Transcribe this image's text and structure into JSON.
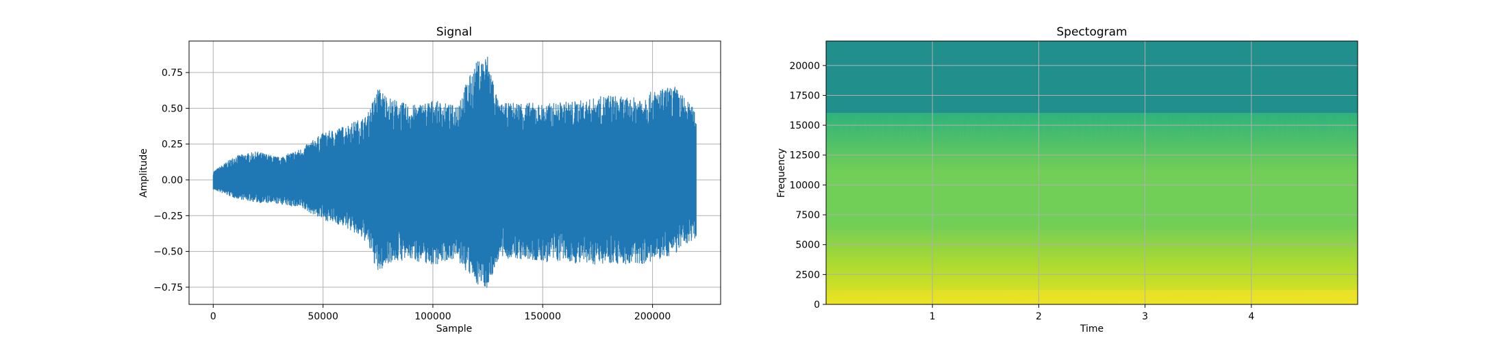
{
  "chart_data": [
    {
      "type": "line",
      "title": "Signal",
      "xlabel": "Sample",
      "ylabel": "Amplitude",
      "xlim": [
        -11000,
        231000
      ],
      "ylim": [
        -0.87,
        0.97
      ],
      "grid": true,
      "line_color": "#1f77b4",
      "xticks": [
        0,
        50000,
        100000,
        150000,
        200000
      ],
      "yticks": [
        -0.75,
        -0.5,
        -0.25,
        0.0,
        0.25,
        0.5,
        0.75
      ],
      "xtick_labels": [
        "0",
        "50000",
        "100000",
        "150000",
        "200000"
      ],
      "ytick_labels": [
        "−0.75",
        "−0.50",
        "−0.25",
        "0.00",
        "0.25",
        "0.50",
        "0.75"
      ],
      "envelope": {
        "x": [
          0,
          10000,
          20000,
          30000,
          40000,
          50000,
          60000,
          70000,
          75000,
          80000,
          90000,
          100000,
          110000,
          120000,
          125000,
          130000,
          140000,
          150000,
          160000,
          170000,
          180000,
          190000,
          200000,
          210000,
          220000
        ],
        "upper": [
          0.06,
          0.17,
          0.2,
          0.16,
          0.22,
          0.33,
          0.38,
          0.45,
          0.65,
          0.58,
          0.52,
          0.56,
          0.52,
          0.83,
          0.88,
          0.53,
          0.55,
          0.53,
          0.55,
          0.56,
          0.6,
          0.57,
          0.62,
          0.66,
          0.48
        ],
        "lower": [
          -0.07,
          -0.13,
          -0.16,
          -0.17,
          -0.2,
          -0.28,
          -0.33,
          -0.44,
          -0.66,
          -0.58,
          -0.56,
          -0.6,
          -0.55,
          -0.73,
          -0.76,
          -0.55,
          -0.56,
          -0.58,
          -0.57,
          -0.6,
          -0.58,
          -0.6,
          -0.58,
          -0.52,
          -0.4
        ]
      }
    },
    {
      "type": "heatmap",
      "title": "Spectogram",
      "xlabel": "Time",
      "ylabel": "Frequency",
      "xlim": [
        0.0,
        5.0
      ],
      "ylim": [
        0,
        22050
      ],
      "grid": true,
      "colormap": "viridis",
      "xticks": [
        1,
        2,
        3,
        4
      ],
      "yticks": [
        0,
        2500,
        5000,
        7500,
        10000,
        12500,
        15000,
        17500,
        20000
      ],
      "xtick_labels": [
        "1",
        "2",
        "3",
        "4"
      ],
      "ytick_labels": [
        "0",
        "2500",
        "5000",
        "7500",
        "10000",
        "12500",
        "15000",
        "17500",
        "20000"
      ],
      "cutoff_frequency": 16000,
      "colors": {
        "above_cutoff": "#21908c",
        "band_top": "#2eb37c",
        "band_mid": "#75d054",
        "band_low": "#b5de2b",
        "band_bottom": "#f1e51d"
      }
    }
  ]
}
